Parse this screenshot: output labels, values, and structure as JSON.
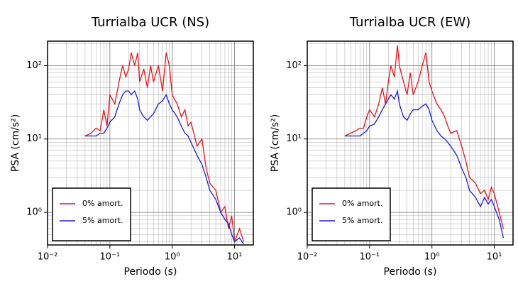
{
  "chart_data": [
    {
      "type": "line",
      "title": "Turrialba UCR (NS)",
      "x_label": "Periodo (s)",
      "y_label": "PSA (cm/s²)",
      "log_x": true,
      "log_y": true,
      "grid": true,
      "legend": "lower left",
      "xlim": [
        0.01,
        20
      ],
      "ylim": [
        0.36,
        215
      ],
      "xticks": [
        {
          "value": 0.01,
          "label": "10⁻²"
        },
        {
          "value": 0.1,
          "label": "10⁻¹"
        },
        {
          "value": 1,
          "label": "10⁰"
        },
        {
          "value": 10,
          "label": "10¹"
        }
      ],
      "yticks": [
        {
          "value": 1,
          "label": "10⁰"
        },
        {
          "value": 10,
          "label": "10¹"
        },
        {
          "value": 100,
          "label": "10²"
        }
      ],
      "x": [
        0.04,
        0.05,
        0.06,
        0.07,
        0.08,
        0.09,
        0.1,
        0.12,
        0.14,
        0.16,
        0.18,
        0.2,
        0.22,
        0.25,
        0.28,
        0.3,
        0.35,
        0.4,
        0.45,
        0.5,
        0.6,
        0.7,
        0.8,
        0.9,
        1,
        1.2,
        1.4,
        1.6,
        1.8,
        2,
        2.5,
        3,
        3.5,
        4,
        5,
        6,
        7,
        8,
        9,
        10,
        12,
        14
      ],
      "series": [
        {
          "name": "0% amort.",
          "color": "#e8141b",
          "values": [
            11,
            12,
            14,
            13,
            25,
            15,
            40,
            30,
            60,
            100,
            70,
            90,
            150,
            100,
            150,
            60,
            90,
            50,
            100,
            60,
            100,
            45,
            150,
            100,
            40,
            30,
            20,
            25,
            15,
            17,
            8,
            10,
            4,
            2.5,
            2,
            1,
            1.2,
            0.6,
            0.9,
            0.4,
            0.6,
            0.4
          ]
        },
        {
          "name": "5% amort.",
          "color": "#1a1ae6",
          "values": [
            11,
            11,
            11,
            12,
            12,
            14,
            17,
            20,
            30,
            40,
            45,
            45,
            40,
            45,
            35,
            25,
            20,
            18,
            20,
            22,
            30,
            33,
            40,
            30,
            25,
            20,
            15,
            12,
            11,
            9,
            6,
            4.5,
            3,
            2,
            1.5,
            1,
            0.8,
            0.7,
            0.5,
            0.4,
            0.45,
            0.37
          ]
        }
      ]
    },
    {
      "type": "line",
      "title": "Turrialba UCR (EW)",
      "x_label": "Periodo (s)",
      "y_label": "PSA (cm/s²)",
      "log_x": true,
      "log_y": true,
      "grid": true,
      "legend": "lower left",
      "xlim": [
        0.01,
        20
      ],
      "ylim": [
        0.36,
        215
      ],
      "xticks": [
        {
          "value": 0.01,
          "label": "10⁻²"
        },
        {
          "value": 0.1,
          "label": "10⁻¹"
        },
        {
          "value": 1,
          "label": "10⁰"
        },
        {
          "value": 10,
          "label": "10¹"
        }
      ],
      "yticks": [
        {
          "value": 1,
          "label": "10⁰"
        },
        {
          "value": 10,
          "label": "10¹"
        },
        {
          "value": 100,
          "label": "10²"
        }
      ],
      "x": [
        0.04,
        0.05,
        0.06,
        0.07,
        0.08,
        0.09,
        0.1,
        0.12,
        0.14,
        0.16,
        0.18,
        0.2,
        0.22,
        0.25,
        0.28,
        0.3,
        0.35,
        0.4,
        0.45,
        0.5,
        0.6,
        0.7,
        0.8,
        0.9,
        1,
        1.2,
        1.4,
        1.6,
        1.8,
        2,
        2.5,
        3,
        3.5,
        4,
        5,
        6,
        7,
        8,
        9,
        10,
        12,
        14
      ],
      "series": [
        {
          "name": "0% amort.",
          "color": "#e8141b",
          "values": [
            11,
            12,
            13,
            14,
            14,
            20,
            25,
            20,
            30,
            50,
            30,
            60,
            100,
            70,
            190,
            100,
            60,
            40,
            80,
            40,
            60,
            100,
            150,
            60,
            45,
            30,
            25,
            20,
            15,
            12,
            13,
            8,
            5,
            3,
            2.5,
            1.8,
            2,
            1.5,
            2.2,
            1.8,
            1,
            0.6
          ]
        },
        {
          "name": "5% amort.",
          "color": "#1a1ae6",
          "values": [
            11,
            11,
            11,
            11,
            12,
            13,
            15,
            16,
            20,
            25,
            30,
            35,
            40,
            35,
            45,
            30,
            20,
            18,
            22,
            25,
            25,
            28,
            30,
            25,
            18,
            13,
            11,
            10,
            9,
            8,
            6,
            4,
            3,
            2,
            1.6,
            1.2,
            1.6,
            1.3,
            1.5,
            1.2,
            0.8,
            0.45
          ]
        }
      ]
    }
  ]
}
